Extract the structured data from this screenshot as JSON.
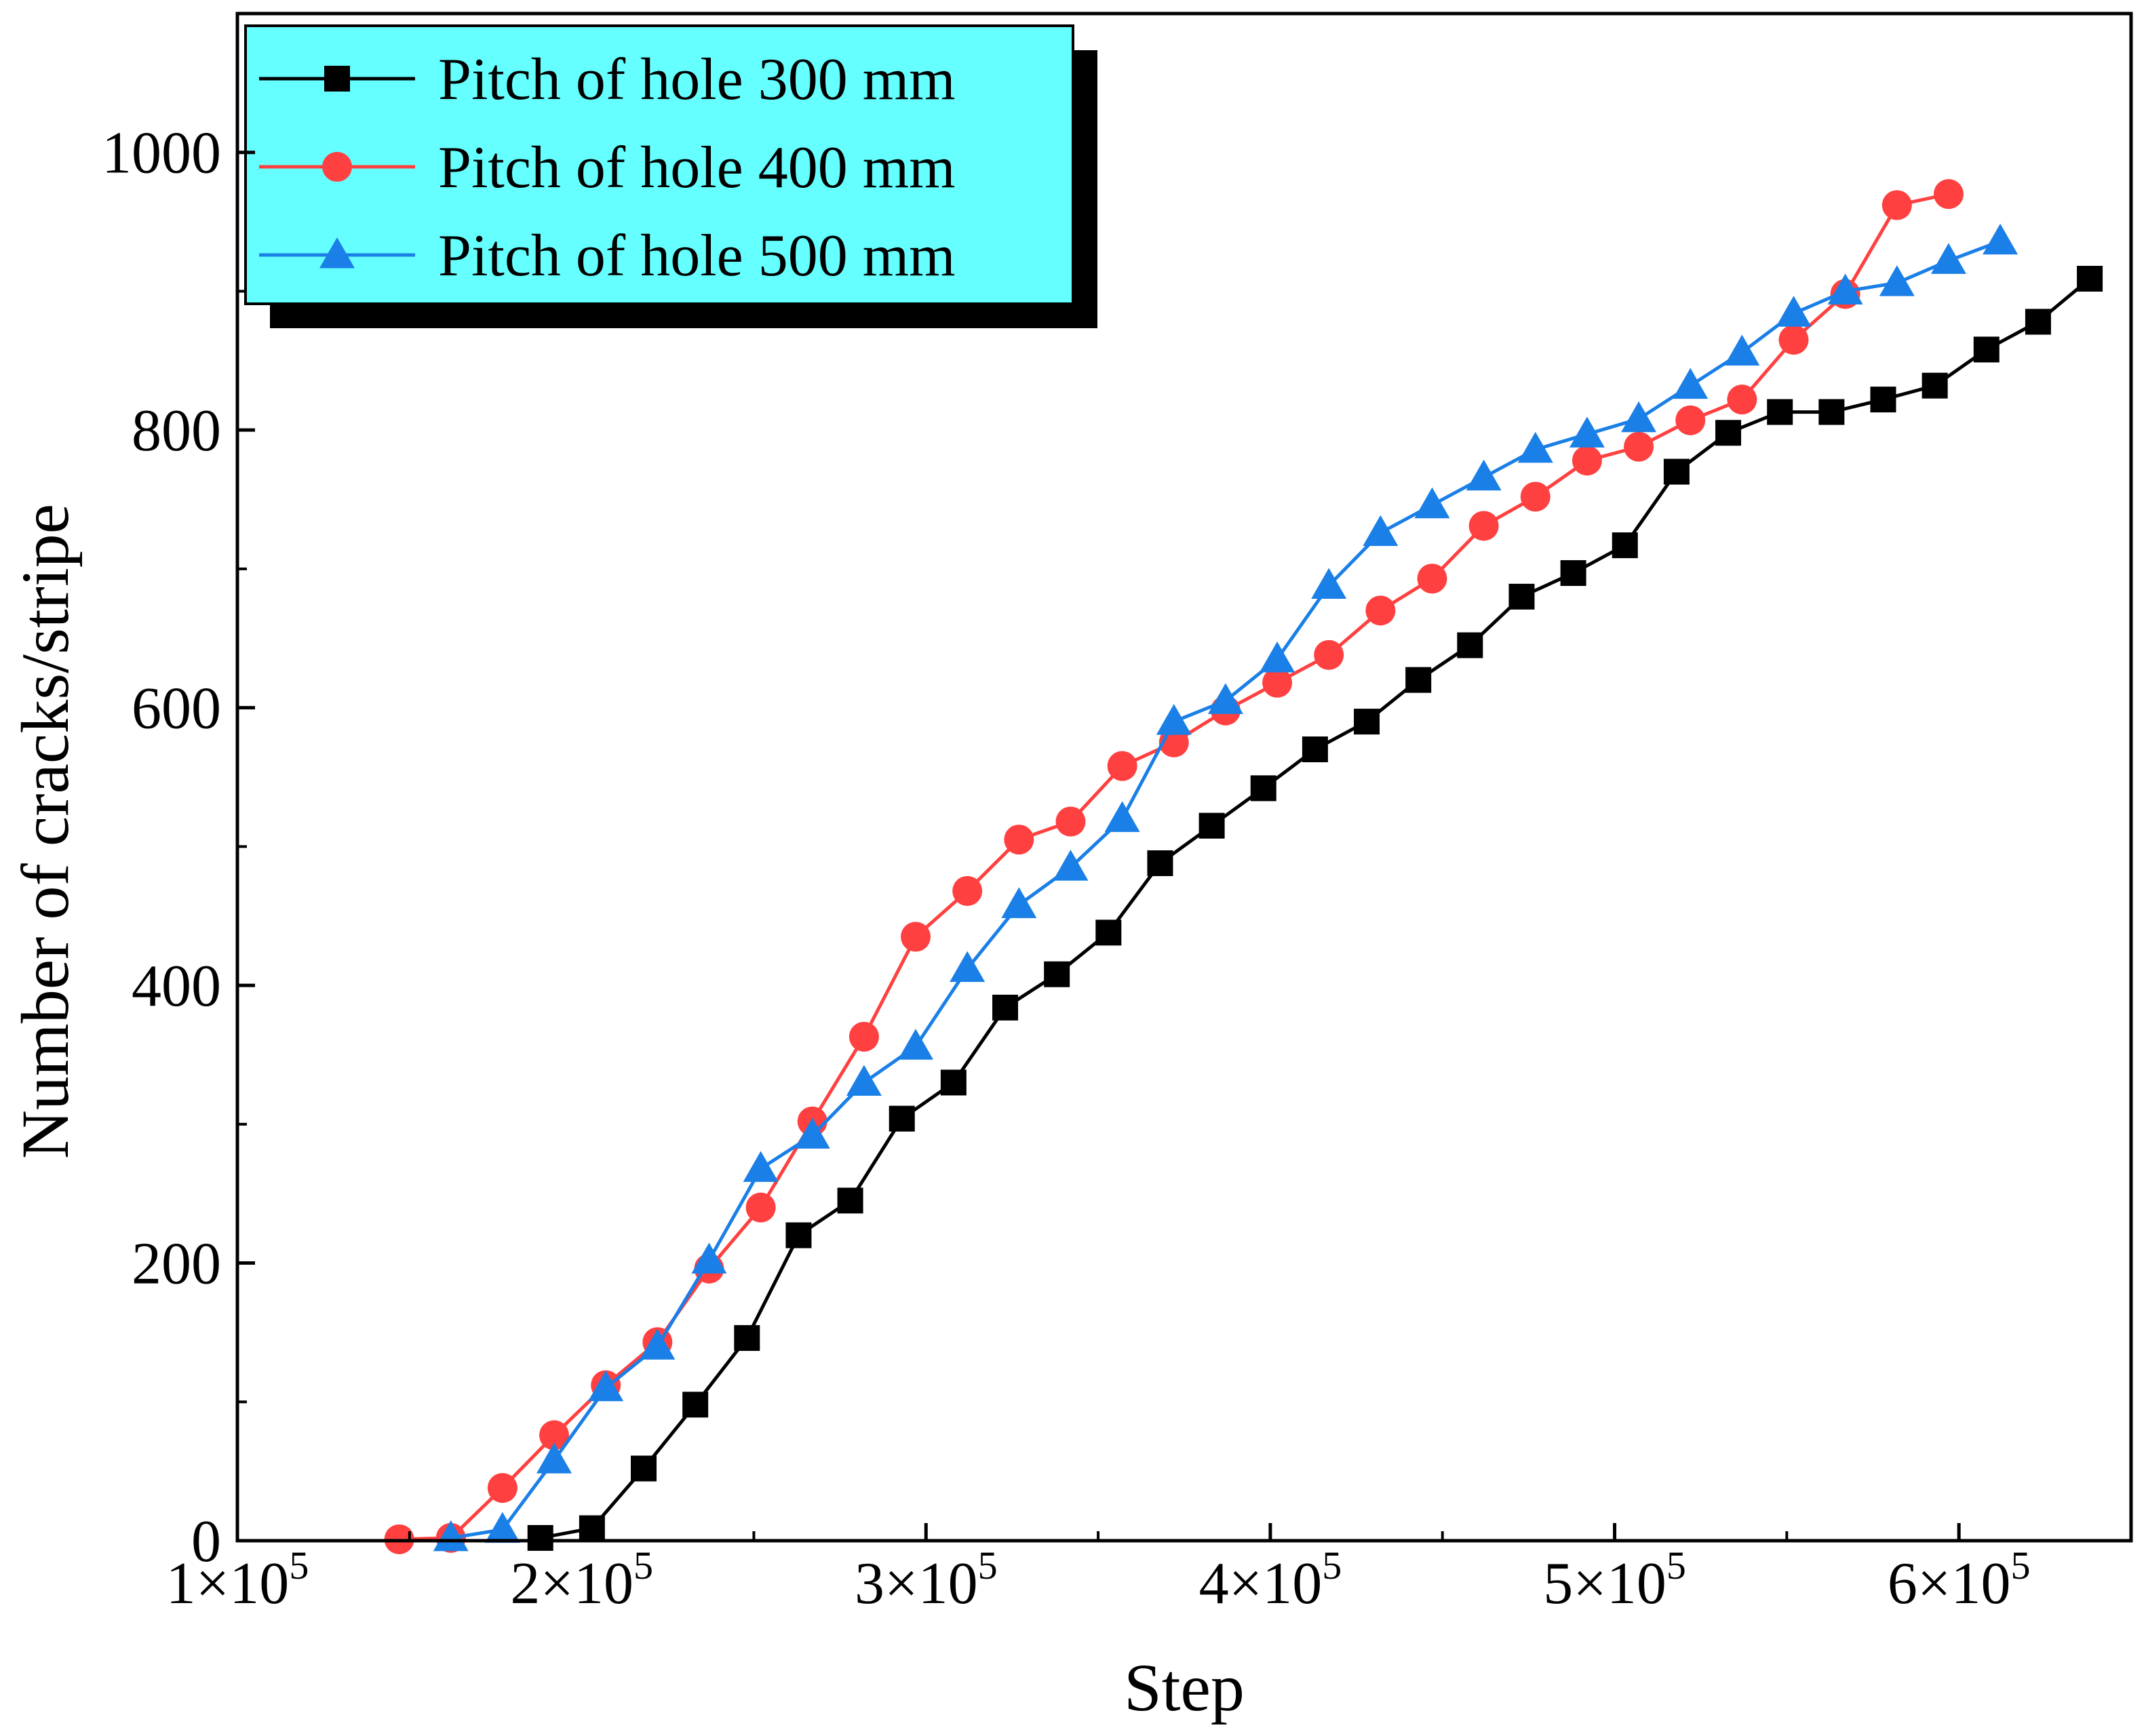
{
  "chart_data": {
    "type": "line",
    "title": "",
    "xlabel": "Step",
    "ylabel": "Number of cracks/stripe",
    "xlim": [
      100000,
      650000
    ],
    "ylim": [
      0,
      1100
    ],
    "x_ticks": [
      {
        "value": 100000,
        "mantissa": "1×10",
        "exp": "5"
      },
      {
        "value": 200000,
        "mantissa": "2×10",
        "exp": "5"
      },
      {
        "value": 300000,
        "mantissa": "3×10",
        "exp": "5"
      },
      {
        "value": 400000,
        "mantissa": "4×10",
        "exp": "5"
      },
      {
        "value": 500000,
        "mantissa": "5×10",
        "exp": "5"
      },
      {
        "value": 600000,
        "mantissa": "6×10",
        "exp": "5"
      }
    ],
    "y_ticks": [
      {
        "value": 0,
        "label": "0"
      },
      {
        "value": 200,
        "label": "200"
      },
      {
        "value": 400,
        "label": "400"
      },
      {
        "value": 600,
        "label": "600"
      },
      {
        "value": 800,
        "label": "800"
      },
      {
        "value": 1000,
        "label": "1000"
      }
    ],
    "legend_position": "top-left",
    "legend_background": "#66ffff",
    "series": [
      {
        "name": "Pitch of hole 300 mm",
        "color": "#000000",
        "marker": "square",
        "x": [
          188000,
          203000,
          218000,
          233000,
          248000,
          263000,
          278000,
          293000,
          308000,
          323000,
          338000,
          353000,
          368000,
          383000,
          398000,
          413000,
          428000,
          443000,
          458000,
          473000,
          488000,
          503000,
          518000,
          533000,
          548000,
          563000,
          578000,
          593000,
          608000,
          623000,
          638000
        ],
        "y": [
          2,
          9,
          52,
          98,
          146,
          220,
          245,
          304,
          330,
          384,
          408,
          438,
          488,
          515,
          542,
          570,
          590,
          620,
          645,
          680,
          697,
          717,
          770,
          798,
          813,
          813,
          822,
          832,
          858,
          878,
          909
        ]
      },
      {
        "name": "Pitch of hole 400 mm",
        "color": "#ff4040",
        "marker": "circle",
        "x": [
          147000,
          162000,
          177000,
          192000,
          207000,
          222000,
          237000,
          252000,
          267000,
          282000,
          297000,
          312000,
          327000,
          342000,
          357000,
          372000,
          387000,
          402000,
          417000,
          432000,
          447000,
          462000,
          477000,
          492000,
          507000,
          522000,
          537000,
          552000,
          567000,
          582000,
          597000
        ],
        "y": [
          1,
          2,
          38,
          76,
          112,
          143,
          196,
          240,
          302,
          363,
          435,
          468,
          505,
          518,
          558,
          575,
          598,
          618,
          638,
          670,
          693,
          731,
          752,
          778,
          788,
          807,
          822,
          865,
          898,
          962,
          970
        ]
      },
      {
        "name": "Pitch of hole 500 mm",
        "color": "#1a7fe6",
        "marker": "triangle",
        "x": [
          162000,
          177000,
          192000,
          207000,
          222000,
          237000,
          252000,
          267000,
          282000,
          297000,
          312000,
          327000,
          342000,
          357000,
          372000,
          387000,
          402000,
          417000,
          432000,
          447000,
          462000,
          477000,
          492000,
          507000,
          522000,
          537000,
          552000,
          567000,
          582000,
          597000,
          612000
        ],
        "y": [
          2,
          8,
          58,
          110,
          140,
          202,
          268,
          292,
          330,
          356,
          412,
          458,
          485,
          520,
          590,
          605,
          635,
          688,
          726,
          746,
          766,
          786,
          797,
          808,
          832,
          856,
          884,
          900,
          906,
          922,
          936
        ]
      }
    ]
  }
}
